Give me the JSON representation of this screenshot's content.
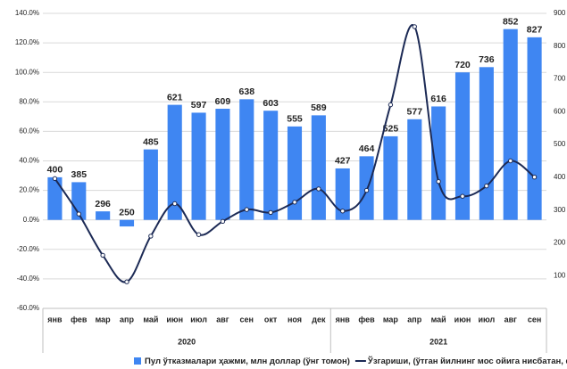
{
  "chart_data": {
    "type": "bar_line",
    "groups": [
      {
        "label": "2020",
        "categories": [
          "янв",
          "фев",
          "мар",
          "апр",
          "май",
          "июн",
          "июл",
          "авг",
          "сен",
          "окт",
          "ноя",
          "дек"
        ]
      },
      {
        "label": "2021",
        "categories": [
          "янв",
          "фев",
          "мар",
          "апр",
          "май",
          "июн",
          "июл",
          "авг",
          "сен"
        ]
      }
    ],
    "series": [
      {
        "name": "Пул ўтказмалари ҳажми, млн доллар (ўнг томон)",
        "type": "bar",
        "axis": "y2",
        "color": "#3f86f2",
        "values": [
          400,
          385,
          296,
          250,
          485,
          621,
          597,
          609,
          638,
          603,
          555,
          589,
          427,
          464,
          525,
          577,
          616,
          720,
          736,
          852,
          827
        ]
      },
      {
        "name": "Ўзгариши, (ўтган йилнинг мос ойига нисбатан, фоизда)",
        "type": "line",
        "axis": "y",
        "color": "#1c2a55",
        "values": [
          28,
          4,
          -24,
          -42,
          -11,
          11,
          -10,
          -1,
          7,
          5,
          12,
          21,
          6,
          20,
          78,
          131,
          26,
          16,
          23,
          40,
          29
        ]
      }
    ],
    "ylim": [
      -60,
      140
    ],
    "yticks": [
      {
        "value": -60,
        "label": "-60.0%"
      },
      {
        "value": -40,
        "label": "-40.0%"
      },
      {
        "value": -20,
        "label": "-20.0%"
      },
      {
        "value": 0,
        "label": "0.0%"
      },
      {
        "value": 20,
        "label": "20.0%"
      },
      {
        "value": 40,
        "label": "40.0%"
      },
      {
        "value": 60,
        "label": "60.0%"
      },
      {
        "value": 80,
        "label": "80.0%"
      },
      {
        "value": 100,
        "label": "100.0%"
      },
      {
        "value": 120,
        "label": "120.0%"
      },
      {
        "value": 140,
        "label": "140.0%"
      }
    ],
    "y2lim": [
      0,
      900
    ],
    "y2ticks": [
      100,
      200,
      300,
      400,
      500,
      600,
      700,
      800,
      900
    ],
    "grid": true
  }
}
